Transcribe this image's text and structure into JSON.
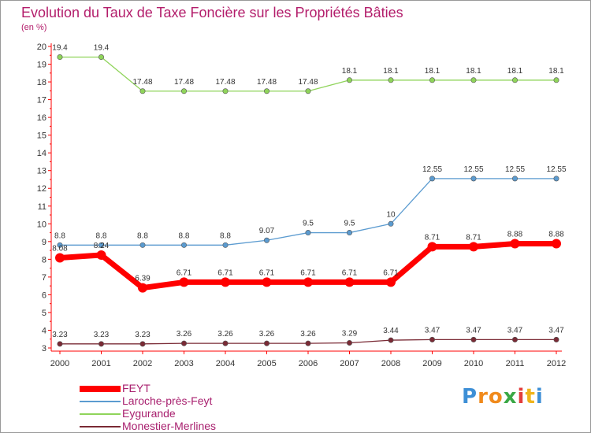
{
  "chart_data": {
    "type": "line",
    "title": "Evolution du Taux de Taxe Foncière sur les Propriétés Bâties",
    "ylabel": "(en %)",
    "xlabel": "",
    "x": [
      "2000",
      "2001",
      "2002",
      "2003",
      "2004",
      "2005",
      "2006",
      "2007",
      "2008",
      "2009",
      "2010",
      "2011",
      "2012"
    ],
    "ylim": [
      3,
      20
    ],
    "yticks": [
      "3",
      "4",
      "5",
      "6",
      "7",
      "8",
      "9",
      "10",
      "11",
      "12",
      "13",
      "14",
      "15",
      "16",
      "17",
      "18",
      "19",
      "20"
    ],
    "grid": false,
    "legend_position": "bottom-left",
    "series": [
      {
        "name": "FEYT",
        "color": "#ff0000",
        "values": [
          8.08,
          8.24,
          6.39,
          6.71,
          6.71,
          6.71,
          6.71,
          6.71,
          6.71,
          8.71,
          8.71,
          8.88,
          8.88
        ],
        "labels": [
          "8.08",
          "8.24",
          "6.39",
          "6.71",
          "6.71",
          "6.71",
          "6.71",
          "6.71",
          "6.71",
          "8.71",
          "8.71",
          "8.88",
          "8.88"
        ]
      },
      {
        "name": "Laroche-près-Feyt",
        "color": "#5b9bd0",
        "values": [
          8.8,
          8.8,
          8.8,
          8.8,
          8.8,
          9.07,
          9.5,
          9.5,
          10,
          12.55,
          12.55,
          12.55,
          12.55
        ],
        "labels": [
          "8.8",
          "8.8",
          "8.8",
          "8.8",
          "8.8",
          "9.07",
          "9.5",
          "9.5",
          "10",
          "12.55",
          "12.55",
          "12.55",
          "12.55"
        ]
      },
      {
        "name": "Eygurande",
        "color": "#8fd45a",
        "values": [
          19.4,
          19.4,
          17.48,
          17.48,
          17.48,
          17.48,
          17.48,
          18.1,
          18.1,
          18.1,
          18.1,
          18.1,
          18.1
        ],
        "labels": [
          "19.4",
          "19.4",
          "17.48",
          "17.48",
          "17.48",
          "17.48",
          "17.48",
          "18.1",
          "18.1",
          "18.1",
          "18.1",
          "18.1",
          "18.1"
        ]
      },
      {
        "name": "Monestier-Merlines",
        "color": "#7a2a35",
        "values": [
          3.23,
          3.23,
          3.23,
          3.26,
          3.26,
          3.26,
          3.26,
          3.29,
          3.44,
          3.47,
          3.47,
          3.47,
          3.47
        ],
        "labels": [
          "3.23",
          "3.23",
          "3.23",
          "3.26",
          "3.26",
          "3.26",
          "3.26",
          "3.29",
          "3.44",
          "3.47",
          "3.47",
          "3.47",
          "3.47"
        ]
      }
    ]
  },
  "legend": [
    {
      "label": "FEYT",
      "color": "#ff0000"
    },
    {
      "label": "Laroche-près-Feyt",
      "color": "#5b9bd0"
    },
    {
      "label": "Eygurande",
      "color": "#8fd45a"
    },
    {
      "label": "Monestier-Merlines",
      "color": "#7a2a35"
    }
  ],
  "logo": {
    "text": "Proxiti",
    "letters": [
      "P",
      "r",
      "o",
      "x",
      "i",
      "t",
      "i"
    ],
    "colors": [
      "#3d8fd6",
      "#f08a1c",
      "#f08a1c",
      "#3aa845",
      "#e33d3d",
      "#f0b41c",
      "#3d8fd6"
    ]
  }
}
